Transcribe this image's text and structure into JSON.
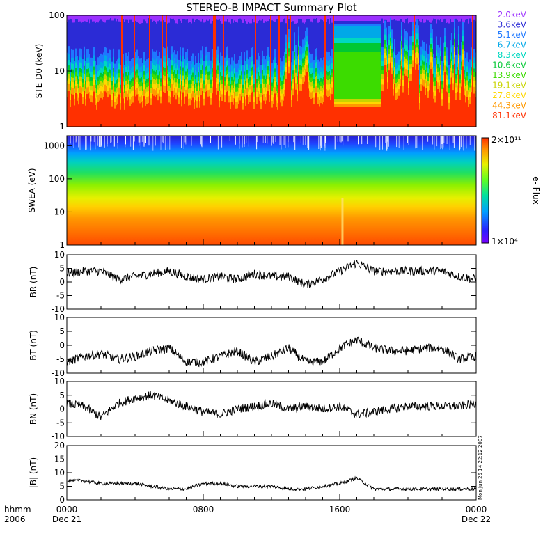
{
  "title": "STEREO-B IMPACT Summary Plot",
  "stamp": "Mon Jun 25 14:22:12 2007",
  "chart_data": [
    {
      "type": "line",
      "id": "ste",
      "ylabel": "STE D0 (keV)",
      "yscale": "log",
      "ylim": [
        1,
        100
      ],
      "yticks": [
        "1",
        "10",
        "100"
      ],
      "legend_position": "right",
      "series": [
        {
          "name": "2.0keV",
          "color": "#9b30ff"
        },
        {
          "name": "3.6keV",
          "color": "#2b2bd6"
        },
        {
          "name": "5.1keV",
          "color": "#1e78ff"
        },
        {
          "name": "6.7keV",
          "color": "#00a8e8"
        },
        {
          "name": "8.3keV",
          "color": "#00d8c0"
        },
        {
          "name": "10.6keV",
          "color": "#00c832"
        },
        {
          "name": "13.9keV",
          "color": "#3cdc00"
        },
        {
          "name": "19.1keV",
          "color": "#c8d400"
        },
        {
          "name": "27.8keV",
          "color": "#ffd700"
        },
        {
          "name": "44.3keV",
          "color": "#ff9900"
        },
        {
          "name": "81.1keV",
          "color": "#ff3000"
        }
      ]
    },
    {
      "type": "heatmap",
      "id": "swea",
      "ylabel": "SWEA (eV)",
      "yscale": "log",
      "ylim": [
        1,
        2000
      ],
      "yticks": [
        "1",
        "10",
        "100",
        "1000"
      ],
      "colorbar_label": "e- Flux",
      "colorbar_max": "2×10¹¹",
      "colorbar_min": "1×10⁴"
    },
    {
      "type": "line",
      "id": "br",
      "ylabel": "BR (nT)",
      "ylim": [
        -10,
        10
      ],
      "yticks": [
        "-10",
        "-5",
        "0",
        "5",
        "10"
      ],
      "x": [
        0,
        1,
        2,
        3,
        4,
        5,
        6,
        7,
        8,
        9,
        10,
        11,
        12,
        13,
        14,
        15,
        16,
        17,
        18,
        19,
        20,
        21,
        22,
        23,
        24
      ],
      "values": [
        3,
        4,
        4,
        1,
        2,
        3,
        4,
        2,
        1,
        2,
        1,
        3,
        2,
        2,
        -1,
        1,
        4,
        7,
        4,
        4,
        4,
        4,
        4,
        2,
        1
      ]
    },
    {
      "type": "line",
      "id": "bt",
      "ylabel": "BT (nT)",
      "ylim": [
        -10,
        10
      ],
      "yticks": [
        "-10",
        "-5",
        "0",
        "5",
        "10"
      ],
      "x": [
        0,
        1,
        2,
        3,
        4,
        5,
        6,
        7,
        8,
        9,
        10,
        11,
        12,
        13,
        14,
        15,
        16,
        17,
        18,
        19,
        20,
        21,
        22,
        23,
        24
      ],
      "values": [
        -6,
        -4,
        -3,
        -5,
        -4,
        -2,
        -1,
        -6,
        -6,
        -4,
        -2,
        -6,
        -4,
        -1,
        -6,
        -6,
        -1,
        2,
        -1,
        -2,
        -2,
        -1,
        -1,
        -5,
        -4
      ]
    },
    {
      "type": "line",
      "id": "bn",
      "ylabel": "BN (nT)",
      "ylim": [
        -10,
        10
      ],
      "yticks": [
        "-10",
        "-5",
        "0",
        "5",
        "10"
      ],
      "x": [
        0,
        1,
        2,
        3,
        4,
        5,
        6,
        7,
        8,
        9,
        10,
        11,
        12,
        13,
        14,
        15,
        16,
        17,
        18,
        19,
        20,
        21,
        22,
        23,
        24
      ],
      "values": [
        2,
        1,
        -3,
        2,
        4,
        5,
        3,
        1,
        -1,
        -2,
        0,
        1,
        2,
        0,
        1,
        0,
        1,
        -2,
        -1,
        0,
        1,
        1,
        1,
        1,
        2
      ]
    },
    {
      "type": "line",
      "id": "bmag",
      "ylabel": "|B| (nT)",
      "ylim": [
        0,
        20
      ],
      "yticks": [
        "0",
        "5",
        "10",
        "15",
        "20"
      ],
      "x": [
        0,
        1,
        2,
        3,
        4,
        5,
        6,
        7,
        8,
        9,
        10,
        11,
        12,
        13,
        14,
        15,
        16,
        17,
        18,
        19,
        20,
        21,
        22,
        23,
        24
      ],
      "values": [
        7,
        7,
        6,
        6,
        6,
        5,
        4,
        4,
        6,
        6,
        5,
        5,
        5,
        4,
        4,
        5,
        6,
        8,
        4,
        4,
        4,
        4,
        4,
        4,
        4
      ]
    }
  ],
  "xaxis": {
    "unit_line1": "hhmm",
    "unit_line2": "2006",
    "ticks": [
      {
        "label": "0000",
        "date": "Dec 21",
        "x": 0
      },
      {
        "label": "0800",
        "date": "",
        "x": 8
      },
      {
        "label": "1600",
        "date": "",
        "x": 16
      },
      {
        "label": "0000",
        "date": "Dec 22",
        "x": 24
      }
    ],
    "xlim": [
      0,
      24
    ]
  }
}
